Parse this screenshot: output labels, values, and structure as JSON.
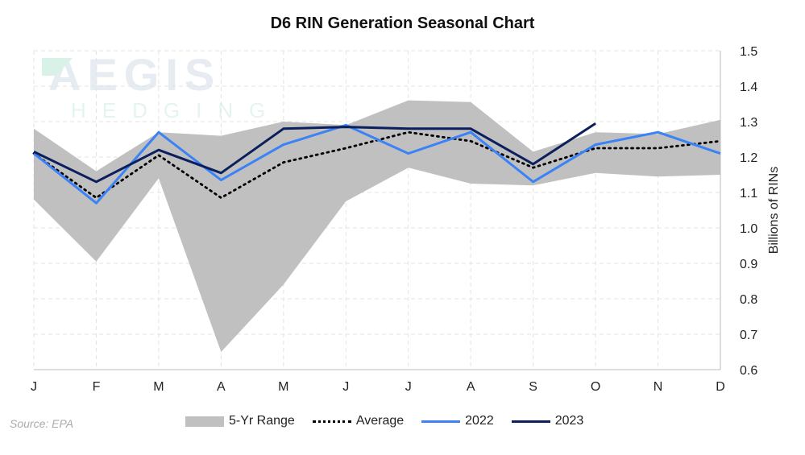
{
  "chart_data": {
    "type": "line",
    "title": "D6 RIN Generation Seasonal Chart",
    "ylabel": "Billions of RINs",
    "xlabel": "",
    "ylim": [
      0.6,
      1.5
    ],
    "yticks": [
      "0.6",
      "0.7",
      "0.8",
      "0.9",
      "1.0",
      "1.1",
      "1.2",
      "1.3",
      "1.4",
      "1.5"
    ],
    "y_axis_side": "right",
    "grid": true,
    "legend_placement": "bottom",
    "categories": [
      "J",
      "F",
      "M",
      "A",
      "M",
      "J",
      "J",
      "A",
      "S",
      "O",
      "N",
      "D"
    ],
    "range": {
      "name": "5-Yr Range",
      "color": "#c0c0c0",
      "upper": [
        1.28,
        1.16,
        1.27,
        1.26,
        1.3,
        1.29,
        1.36,
        1.355,
        1.215,
        1.27,
        1.265,
        1.305
      ],
      "lower": [
        1.08,
        0.905,
        1.14,
        0.65,
        0.84,
        1.075,
        1.17,
        1.125,
        1.12,
        1.155,
        1.145,
        1.15
      ]
    },
    "series": [
      {
        "name": "Average",
        "color": "#000000",
        "style": "dotted",
        "values": [
          1.21,
          1.085,
          1.205,
          1.085,
          1.185,
          1.225,
          1.27,
          1.245,
          1.17,
          1.225,
          1.225,
          1.245
        ]
      },
      {
        "name": "2022",
        "color": "#3b82f6",
        "style": "solid",
        "values": [
          1.21,
          1.07,
          1.27,
          1.135,
          1.235,
          1.29,
          1.21,
          1.27,
          1.13,
          1.235,
          1.27,
          1.21
        ]
      },
      {
        "name": "2023",
        "color": "#0b1f5c",
        "style": "solid",
        "values": [
          1.215,
          1.13,
          1.22,
          1.155,
          1.28,
          1.285,
          1.28,
          1.28,
          1.18,
          1.295,
          null,
          null
        ]
      }
    ]
  },
  "source": "Source: EPA",
  "watermark": {
    "line1": "AEGIS",
    "line2": "HEDGING"
  }
}
